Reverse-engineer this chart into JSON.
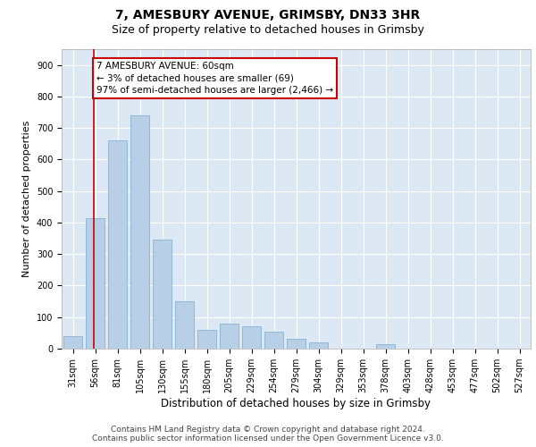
{
  "title": "7, AMESBURY AVENUE, GRIMSBY, DN33 3HR",
  "subtitle": "Size of property relative to detached houses in Grimsby",
  "xlabel": "Distribution of detached houses by size in Grimsby",
  "ylabel": "Number of detached properties",
  "footer_line1": "Contains HM Land Registry data © Crown copyright and database right 2024.",
  "footer_line2": "Contains public sector information licensed under the Open Government Licence v3.0.",
  "bar_labels": [
    "31sqm",
    "56sqm",
    "81sqm",
    "105sqm",
    "130sqm",
    "155sqm",
    "180sqm",
    "205sqm",
    "229sqm",
    "254sqm",
    "279sqm",
    "304sqm",
    "329sqm",
    "353sqm",
    "378sqm",
    "403sqm",
    "428sqm",
    "453sqm",
    "477sqm",
    "502sqm",
    "527sqm"
  ],
  "bar_values": [
    40,
    415,
    660,
    740,
    345,
    150,
    60,
    80,
    70,
    55,
    30,
    20,
    0,
    0,
    15,
    0,
    0,
    0,
    0,
    0,
    0
  ],
  "bar_color": "#b8cfe8",
  "bar_edgecolor": "#7aaace",
  "plot_bg_color": "#dde8f5",
  "fig_bg_color": "#ffffff",
  "grid_color": "#ffffff",
  "vline_color": "#cc0000",
  "vline_x": 0.93,
  "annotation_text": "7 AMESBURY AVENUE: 60sqm\n← 3% of detached houses are smaller (69)\n97% of semi-detached houses are larger (2,466) →",
  "annotation_box_facecolor": "#ffffff",
  "annotation_box_edgecolor": "#cc0000",
  "ylim": [
    0,
    950
  ],
  "yticks": [
    0,
    100,
    200,
    300,
    400,
    500,
    600,
    700,
    800,
    900
  ],
  "title_fontsize": 10,
  "subtitle_fontsize": 9,
  "ylabel_fontsize": 8,
  "xlabel_fontsize": 8.5,
  "tick_fontsize": 7,
  "annot_fontsize": 7.5,
  "footer_fontsize": 6.5
}
